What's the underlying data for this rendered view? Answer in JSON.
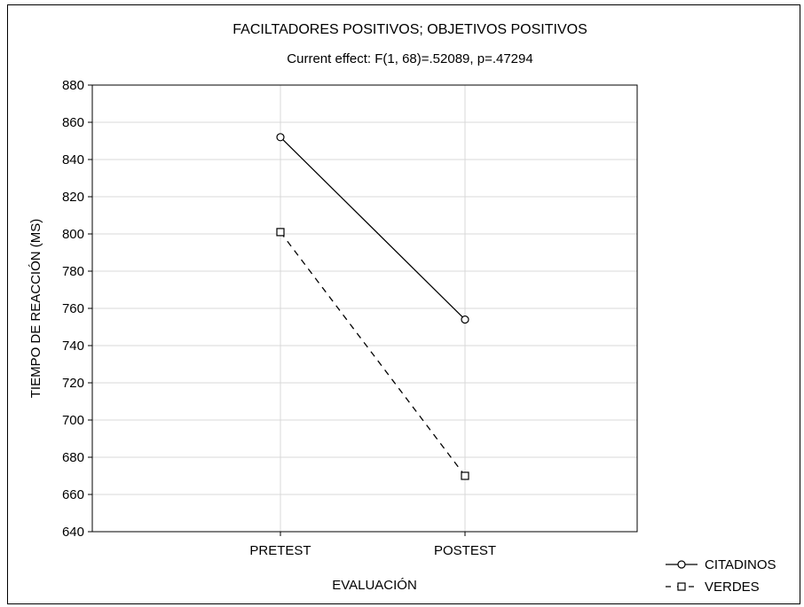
{
  "chart_data": {
    "type": "line",
    "title": "FACILTADORES POSITIVOS; OBJETIVOS POSITIVOS",
    "subtitle": "Current effect: F(1, 68)=.52089, p=.47294",
    "xlabel": "EVALUACIÓN",
    "ylabel": "TIEMPO DE REACCIÓN (MS)",
    "categories": [
      "PRETEST",
      "POSTEST"
    ],
    "ylim": [
      640,
      880
    ],
    "yticks": [
      640,
      660,
      680,
      700,
      720,
      740,
      760,
      780,
      800,
      820,
      840,
      860,
      880
    ],
    "grid": true,
    "legend_position": "bottom-right",
    "series": [
      {
        "name": "CITADINOS",
        "values": [
          852,
          754
        ],
        "marker": "circle",
        "line_style": "solid",
        "color": "#000000"
      },
      {
        "name": "VERDES",
        "values": [
          801,
          670
        ],
        "marker": "square",
        "line_style": "dashed",
        "color": "#000000"
      }
    ]
  }
}
